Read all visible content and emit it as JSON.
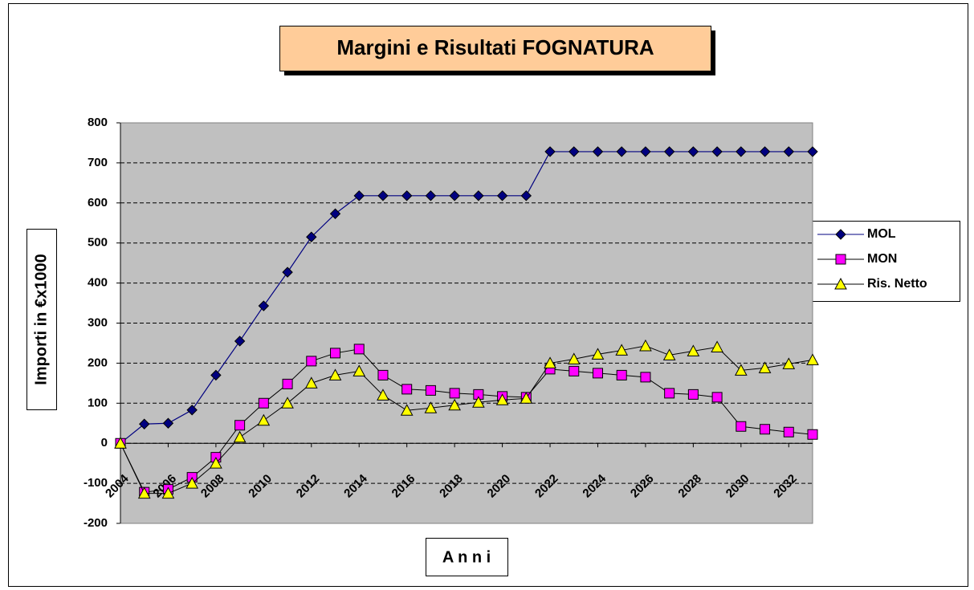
{
  "chart_data": {
    "type": "line",
    "title": "Margini e Risultati FOGNATURA",
    "xlabel": "A n n i",
    "ylabel": "Importi in €x1000",
    "x": [
      2004,
      2005,
      2006,
      2007,
      2008,
      2009,
      2010,
      2011,
      2012,
      2013,
      2014,
      2015,
      2016,
      2017,
      2018,
      2019,
      2020,
      2021,
      2022,
      2023,
      2024,
      2025,
      2026,
      2027,
      2028,
      2029,
      2030,
      2031,
      2032,
      2033
    ],
    "xlim": [
      2004,
      2033
    ],
    "xticks": [
      2004,
      2006,
      2008,
      2010,
      2012,
      2014,
      2016,
      2018,
      2020,
      2022,
      2024,
      2026,
      2028,
      2030,
      2032
    ],
    "ylim": [
      -200,
      800
    ],
    "yticks": [
      -200,
      -100,
      0,
      100,
      200,
      300,
      400,
      500,
      600,
      700,
      800
    ],
    "grid": true,
    "legend": "right",
    "series": [
      {
        "name": "MOL",
        "color": "#000080",
        "marker": "diamond",
        "values": [
          0,
          48,
          50,
          83,
          170,
          255,
          343,
          427,
          515,
          573,
          618,
          618,
          618,
          618,
          618,
          618,
          618,
          618,
          728,
          728,
          728,
          728,
          728,
          728,
          728,
          728,
          728,
          728,
          728,
          728
        ]
      },
      {
        "name": "MON",
        "color": "#ff00ff",
        "marker": "square",
        "values": [
          0,
          -122,
          -115,
          -85,
          -35,
          45,
          100,
          148,
          205,
          225,
          235,
          170,
          135,
          132,
          125,
          122,
          117,
          115,
          185,
          180,
          175,
          170,
          165,
          125,
          122,
          115,
          42,
          35,
          28,
          22
        ]
      },
      {
        "name": "Ris. Netto",
        "color": "#ffff00",
        "marker": "triangle",
        "values": [
          0,
          -125,
          -125,
          -100,
          -50,
          15,
          57,
          100,
          150,
          170,
          180,
          120,
          82,
          88,
          95,
          102,
          108,
          112,
          200,
          210,
          222,
          232,
          243,
          220,
          230,
          240,
          182,
          188,
          198,
          208
        ]
      }
    ]
  }
}
